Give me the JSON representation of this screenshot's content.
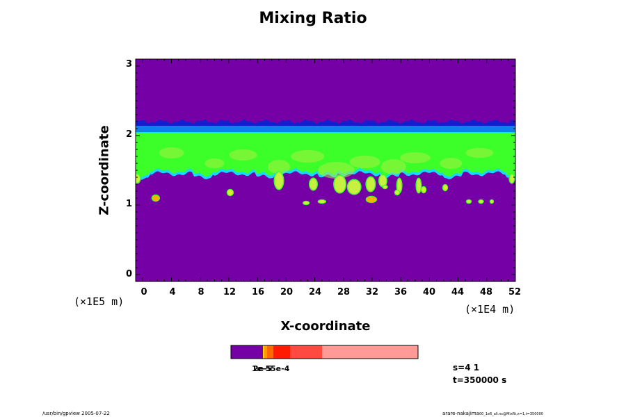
{
  "chart_data": {
    "type": "heatmap",
    "title": "Mixing Ratio",
    "xlabel": "X-coordinate",
    "ylabel": "Z-coordinate",
    "x_unit": "(×1E4 m)",
    "y_unit": "(×1E5 m)",
    "xlim": [
      -1,
      52
    ],
    "ylim": [
      -0.1,
      3.1
    ],
    "x_ticks": [
      "0",
      "4",
      "8",
      "12",
      "16",
      "20",
      "24",
      "28",
      "32",
      "36",
      "40",
      "44",
      "48",
      "52"
    ],
    "y_ticks": [
      "0",
      "1",
      "2",
      "3"
    ],
    "background_color": "#7400a6",
    "upper_band": {
      "z_bottom": 2.05,
      "z_top": 2.2,
      "colors": [
        "#1020d0",
        "#1090f0"
      ]
    },
    "main_layer": {
      "z_bottom": 1.45,
      "z_top": 2.05,
      "color": "#3cff2a"
    },
    "colorbar": {
      "labels": [
        "1e-5",
        "2e-5",
        "5e-4"
      ],
      "colors": [
        "#7400a6",
        "#ffd000",
        "#ff9a00",
        "#ff6a00",
        "#ff1a00",
        "#ff4a40",
        "#ff9a96"
      ]
    }
  },
  "info": {
    "step": "s=4 1",
    "time": "t=350000 s"
  },
  "footer": {
    "left": "/usr/bin/gpview 2005-07-22",
    "right": "arare-nakajima",
    "right_sub": "00_1e6_all.nc@MixRt,x=1,t=350000"
  }
}
